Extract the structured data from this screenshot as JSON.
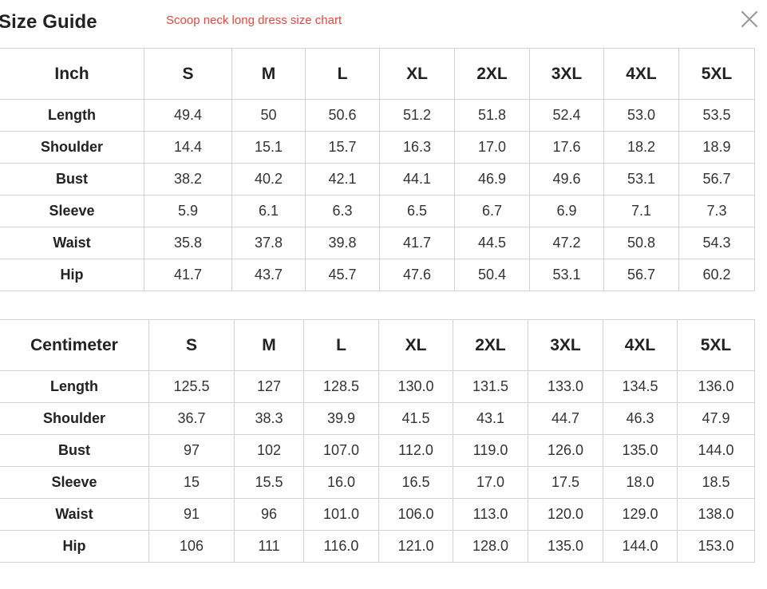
{
  "modal": {
    "title": "Size Guide",
    "subtitle": "Scoop neck long dress size chart",
    "close_icon": "close-icon",
    "accent_color": "#e5473c"
  },
  "tables": {
    "inch": {
      "unit_label": "Inch",
      "sizes": [
        "S",
        "M",
        "L",
        "XL",
        "2XL",
        "3XL",
        "4XL",
        "5XL"
      ],
      "rows": [
        {
          "label": "Length",
          "values": [
            "49.4",
            "50",
            "50.6",
            "51.2",
            "51.8",
            "52.4",
            "53.0",
            "53.5"
          ]
        },
        {
          "label": "Shoulder",
          "values": [
            "14.4",
            "15.1",
            "15.7",
            "16.3",
            "17.0",
            "17.6",
            "18.2",
            "18.9"
          ]
        },
        {
          "label": "Bust",
          "values": [
            "38.2",
            "40.2",
            "42.1",
            "44.1",
            "46.9",
            "49.6",
            "53.1",
            "56.7"
          ]
        },
        {
          "label": "Sleeve",
          "values": [
            "5.9",
            "6.1",
            "6.3",
            "6.5",
            "6.7",
            "6.9",
            "7.1",
            "7.3"
          ]
        },
        {
          "label": "Waist",
          "values": [
            "35.8",
            "37.8",
            "39.8",
            "41.7",
            "44.5",
            "47.2",
            "50.8",
            "54.3"
          ]
        },
        {
          "label": "Hip",
          "values": [
            "41.7",
            "43.7",
            "45.7",
            "47.6",
            "50.4",
            "53.1",
            "56.7",
            "60.2"
          ]
        }
      ]
    },
    "cm": {
      "unit_label": "Centimeter",
      "sizes": [
        "S",
        "M",
        "L",
        "XL",
        "2XL",
        "3XL",
        "4XL",
        "5XL"
      ],
      "rows": [
        {
          "label": "Length",
          "values": [
            "125.5",
            "127",
            "128.5",
            "130.0",
            "131.5",
            "133.0",
            "134.5",
            "136.0"
          ]
        },
        {
          "label": "Shoulder",
          "values": [
            "36.7",
            "38.3",
            "39.9",
            "41.5",
            "43.1",
            "44.7",
            "46.3",
            "47.9"
          ]
        },
        {
          "label": "Bust",
          "values": [
            "97",
            "102",
            "107.0",
            "112.0",
            "119.0",
            "126.0",
            "135.0",
            "144.0"
          ]
        },
        {
          "label": "Sleeve",
          "values": [
            "15",
            "15.5",
            "16.0",
            "16.5",
            "17.0",
            "17.5",
            "18.0",
            "18.5"
          ]
        },
        {
          "label": "Waist",
          "values": [
            "91",
            "96",
            "101.0",
            "106.0",
            "113.0",
            "120.0",
            "129.0",
            "138.0"
          ]
        },
        {
          "label": "Hip",
          "values": [
            "106",
            "111",
            "116.0",
            "121.0",
            "128.0",
            "135.0",
            "144.0",
            "153.0"
          ]
        }
      ]
    }
  }
}
